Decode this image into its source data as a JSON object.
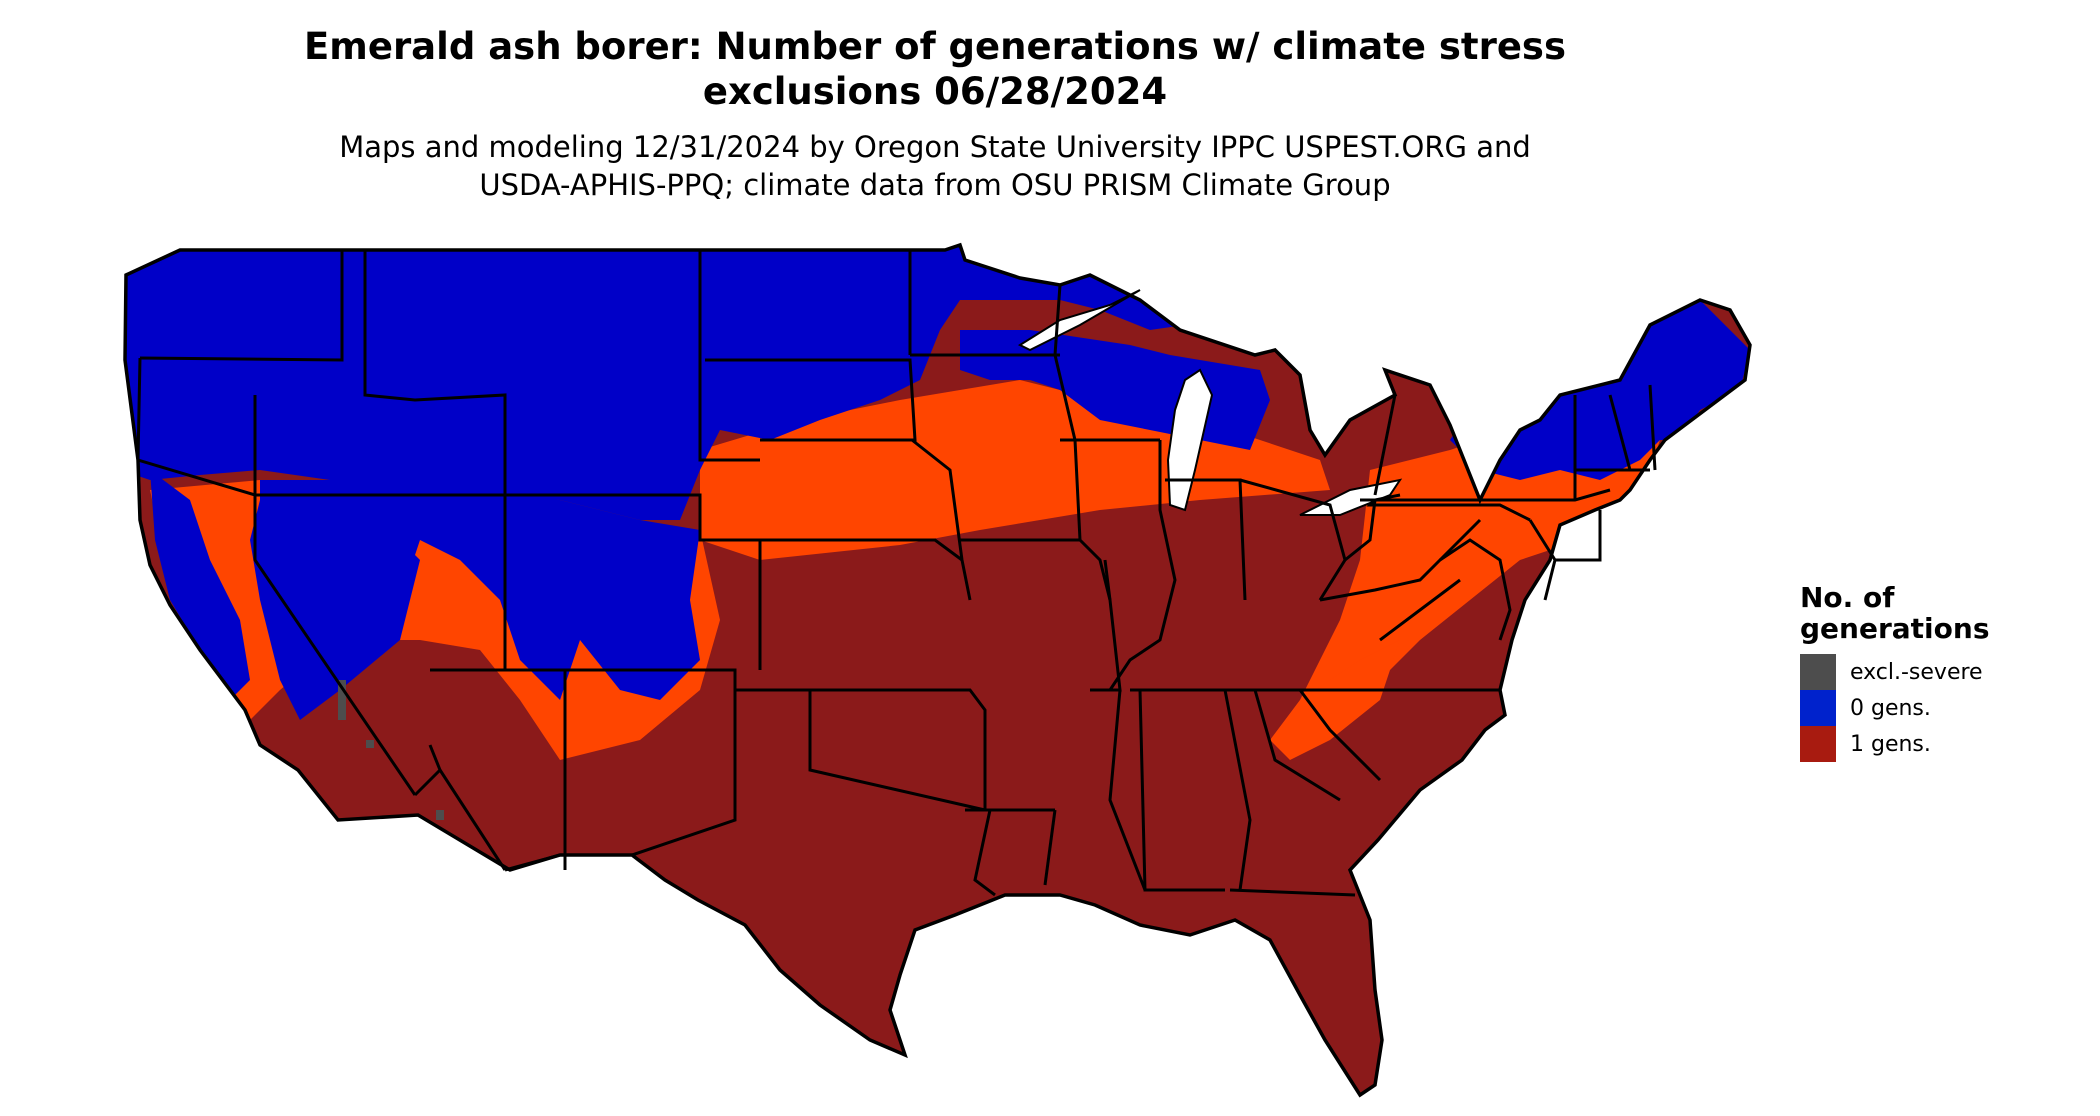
{
  "title_line1": "Emerald ash borer: Number of generations w/ climate stress",
  "title_line2": "exclusions 06/28/2024",
  "subtitle_line1": "Maps and modeling 12/31/2024 by Oregon State University IPPC USPEST.ORG and",
  "subtitle_line2": "USDA-APHIS-PPQ; climate data from OSU PRISM Climate Group",
  "legend": {
    "title_line1": "No. of",
    "title_line2": "generations",
    "items": [
      {
        "label": "excl.-severe",
        "color": "#4d4d4d"
      },
      {
        "label": "0 gens.",
        "color": "#0022cc"
      },
      {
        "label": "1 gens.",
        "color": "#a81b10"
      }
    ]
  },
  "colors": {
    "zero_gens": "#0000c8",
    "one_gen": "#8b1a1a",
    "transition": "#ff4500",
    "excl_severe": "#4d4d4d",
    "state_borders": "#000000"
  }
}
